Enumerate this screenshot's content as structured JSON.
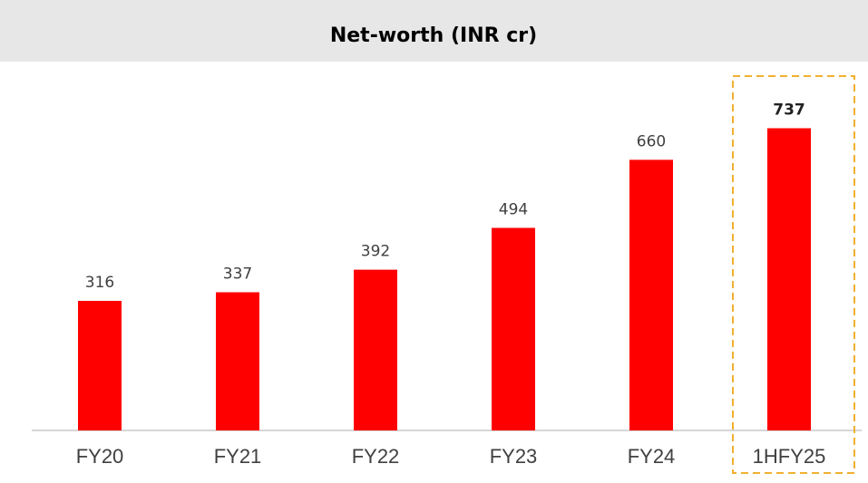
{
  "chart_data": {
    "type": "bar",
    "title": "Net-worth (INR cr)",
    "categories": [
      "FY20",
      "FY21",
      "FY22",
      "FY23",
      "FY24",
      "1HFY25"
    ],
    "values": [
      316,
      337,
      392,
      494,
      660,
      737
    ],
    "color": "#ff0000",
    "highlight": "1HFY25",
    "highlight_color": "#f0b030"
  }
}
